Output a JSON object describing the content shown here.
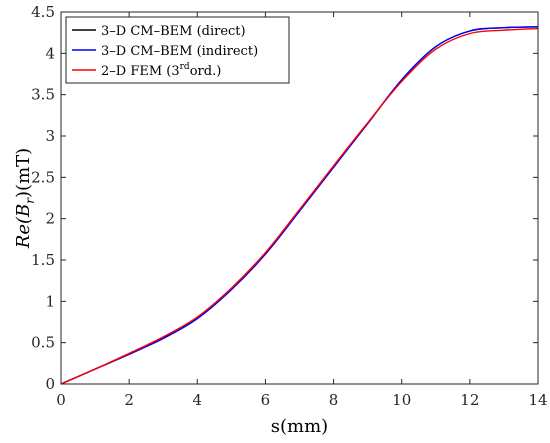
{
  "chart_data": {
    "type": "line",
    "xlabel": "s(mm)",
    "ylabel": {
      "prefix": "Re(",
      "symbol": "B",
      "subscript": "r",
      "suffix": ")(mT)"
    },
    "xlim": [
      0,
      14
    ],
    "ylim": [
      0,
      4.5
    ],
    "xticks": [
      0,
      2,
      4,
      6,
      8,
      10,
      12,
      14
    ],
    "yticks": [
      0,
      0.5,
      1,
      1.5,
      2,
      2.5,
      3,
      3.5,
      4,
      4.5
    ],
    "grid": false,
    "legend_position": "top-left",
    "series": [
      {
        "name": "3–D CM–BEM (direct)",
        "color": "#000000",
        "x": [
          0,
          1,
          2,
          3,
          4,
          5,
          6,
          7,
          8,
          9,
          10,
          11,
          12,
          13,
          14
        ],
        "y": [
          0,
          0.18,
          0.36,
          0.56,
          0.8,
          1.15,
          1.58,
          2.1,
          2.63,
          3.15,
          3.68,
          4.08,
          4.27,
          4.31,
          4.32
        ]
      },
      {
        "name": "3–D CM–BEM (indirect)",
        "color": "#0000ff",
        "x": [
          0,
          1,
          2,
          3,
          4,
          5,
          6,
          7,
          8,
          9,
          10,
          11,
          12,
          13,
          14
        ],
        "y": [
          0,
          0.18,
          0.36,
          0.55,
          0.79,
          1.14,
          1.57,
          2.09,
          2.62,
          3.15,
          3.68,
          4.08,
          4.27,
          4.31,
          4.32
        ]
      },
      {
        "name": "2–D FEM (3rdord.)",
        "name_parts": {
          "pre": "2–D FEM (3",
          "sup": "rd",
          "post": "ord.)"
        },
        "color": "#ff0000",
        "x": [
          0,
          1,
          2,
          3,
          4,
          5,
          6,
          7,
          8,
          9,
          10,
          11,
          12,
          13,
          14
        ],
        "y": [
          0,
          0.18,
          0.37,
          0.57,
          0.81,
          1.16,
          1.59,
          2.11,
          2.64,
          3.16,
          3.66,
          4.05,
          4.24,
          4.28,
          4.3
        ]
      }
    ]
  }
}
